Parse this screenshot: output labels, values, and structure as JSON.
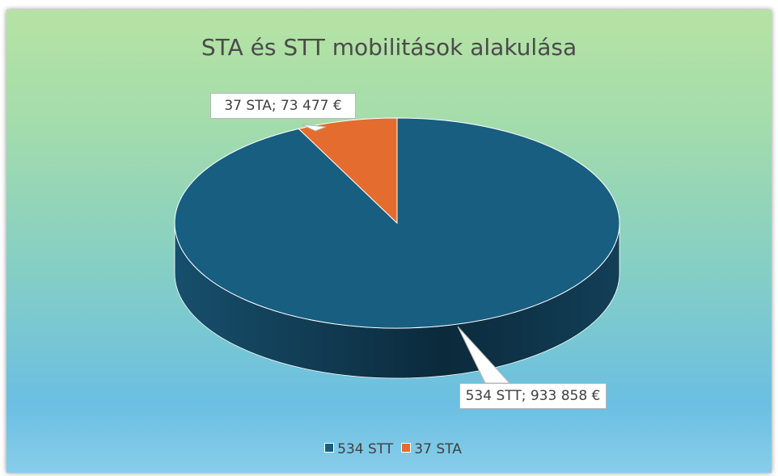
{
  "chart_data": {
    "type": "pie",
    "title": "STA és STT mobilitások alakulása",
    "categories": [
      "534 STT",
      "37 STA"
    ],
    "values": [
      933858,
      73477
    ],
    "value_labels": [
      "534 STT; 933 858 €",
      "37 STA; 73 477 €"
    ],
    "colors": [
      "#175e80",
      "#e46c2e"
    ],
    "legend": "bottom"
  }
}
